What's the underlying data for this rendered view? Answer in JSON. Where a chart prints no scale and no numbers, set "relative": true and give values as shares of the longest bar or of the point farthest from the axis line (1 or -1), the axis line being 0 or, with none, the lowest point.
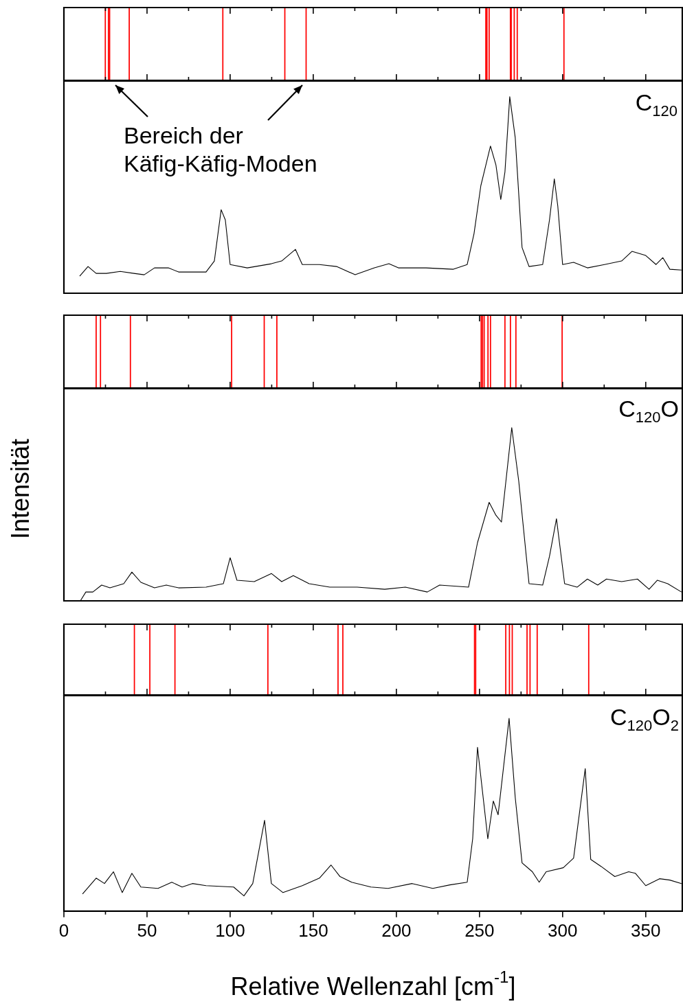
{
  "chart_data": [
    {
      "type": "bar",
      "x": [
        24.9,
        26.8,
        27.5,
        39.3,
        95.6,
        132.9,
        145.7,
        253.8,
        254.5,
        255.8,
        268.6,
        269.1,
        270.9,
        272.7,
        300.8
      ],
      "values": [
        1,
        1,
        1,
        1,
        1,
        1,
        1,
        1,
        1,
        1,
        1,
        1,
        1,
        1,
        1
      ],
      "color": "#ff0000",
      "relative": true,
      "xlim": [
        0,
        372
      ],
      "xticks": [
        0,
        {
          "value": 25,
          "label": null
        },
        50,
        {
          "value": 75,
          "label": null
        },
        100,
        {
          "value": 125,
          "label": null
        },
        150,
        {
          "value": 175,
          "label": null
        },
        200,
        {
          "value": 225,
          "label": null
        },
        250,
        {
          "value": 275,
          "label": null
        },
        300,
        {
          "value": 325,
          "label": null
        },
        350
      ],
      "tick_labels": false
    },
    {
      "type": "line",
      "x": [
        9.5,
        14.5,
        19.4,
        25.6,
        33.9,
        42.1,
        48.3,
        54.5,
        62.8,
        69,
        85.5,
        90.5,
        94.6,
        97.1,
        100,
        110.3,
        124.8,
        131,
        139.3,
        143.4,
        153.7,
        164,
        175.2,
        186.8,
        195.5,
        201.2,
        217.8,
        234.3,
        242.6,
        246.7,
        250.8,
        256.6,
        259.9,
        262.8,
        265.3,
        268.2,
        271.5,
        275.6,
        279.8,
        288,
        292.1,
        295,
        297.1,
        300,
        306.6,
        314.9,
        325.2,
        335.5,
        341.7,
        350,
        356.2,
        360.3,
        364.5,
        371.5
      ],
      "values": [
        0.087,
        0.136,
        0.101,
        0.101,
        0.111,
        0.101,
        0.094,
        0.129,
        0.129,
        0.108,
        0.108,
        0.164,
        0.425,
        0.373,
        0.146,
        0.129,
        0.15,
        0.164,
        0.223,
        0.146,
        0.146,
        0.136,
        0.094,
        0.129,
        0.15,
        0.129,
        0.129,
        0.122,
        0.146,
        0.303,
        0.547,
        0.749,
        0.652,
        0.477,
        0.617,
        1,
        0.791,
        0.233,
        0.136,
        0.146,
        0.373,
        0.582,
        0.443,
        0.146,
        0.157,
        0.129,
        0.146,
        0.164,
        0.213,
        0.192,
        0.146,
        0.181,
        0.122,
        0.118
      ],
      "color": "#000000",
      "relative": true,
      "xlim": [
        0,
        372
      ],
      "xticks": [
        0,
        {
          "value": 25,
          "label": null
        },
        50,
        {
          "value": 75,
          "label": null
        },
        100,
        {
          "value": 125,
          "label": null
        },
        150,
        {
          "value": 175,
          "label": null
        },
        200,
        {
          "value": 225,
          "label": null
        },
        250,
        {
          "value": 275,
          "label": null
        },
        300,
        {
          "value": 325,
          "label": null
        },
        350
      ],
      "tick_labels": false,
      "annotations": [
        "C$_{120}$",
        "Bereich der Käfig-Käfig-Moden"
      ]
    },
    {
      "type": "bar",
      "x": [
        19.4,
        22,
        40,
        100.9,
        120.5,
        128.1,
        251,
        251.8,
        252.8,
        255.1,
        256.6,
        265.3,
        268.6,
        271.9,
        299.7
      ],
      "values": [
        1,
        1,
        1,
        1,
        1,
        1,
        1,
        1,
        1,
        1,
        1,
        1,
        1,
        1,
        1
      ],
      "color": "#ff0000",
      "relative": true,
      "xlim": [
        0,
        372
      ],
      "xticks": [
        0,
        {
          "value": 25,
          "label": null
        },
        50,
        {
          "value": 75,
          "label": null
        },
        100,
        {
          "value": 125,
          "label": null
        },
        150,
        {
          "value": 175,
          "label": null
        },
        200,
        {
          "value": 225,
          "label": null
        },
        250,
        {
          "value": 275,
          "label": null
        },
        300,
        {
          "value": 325,
          "label": null
        },
        350
      ],
      "tick_labels": false
    },
    {
      "type": "line",
      "x": [
        9.9,
        13.2,
        17.4,
        22.7,
        27.7,
        36,
        40.9,
        46.3,
        54.5,
        61.6,
        69,
        85.5,
        95.9,
        100,
        104.1,
        114.5,
        124.8,
        131,
        138,
        147.5,
        159.9,
        176.4,
        193,
        205.4,
        218.6,
        226,
        243.4,
        248.8,
        255.8,
        259.9,
        263.2,
        269.4,
        273.6,
        279.8,
        288,
        292.1,
        296.3,
        301.2,
        308.7,
        314.9,
        321.1,
        326.4,
        335.5,
        345,
        352,
        357,
        363.2,
        371.5
      ],
      "values": [
        0,
        0.051,
        0.051,
        0.091,
        0.075,
        0.099,
        0.166,
        0.107,
        0.075,
        0.091,
        0.075,
        0.079,
        0.099,
        0.249,
        0.119,
        0.111,
        0.158,
        0.111,
        0.146,
        0.099,
        0.079,
        0.079,
        0.067,
        0.079,
        0.051,
        0.091,
        0.079,
        0.336,
        0.569,
        0.494,
        0.455,
        1,
        0.692,
        0.099,
        0.091,
        0.257,
        0.474,
        0.099,
        0.079,
        0.126,
        0.091,
        0.126,
        0.111,
        0.126,
        0.067,
        0.119,
        0.099,
        0.051
      ],
      "color": "#000000",
      "relative": true,
      "xlim": [
        0,
        372
      ],
      "xticks": [
        0,
        {
          "value": 25,
          "label": null
        },
        50,
        {
          "value": 75,
          "label": null
        },
        100,
        {
          "value": 125,
          "label": null
        },
        150,
        {
          "value": 175,
          "label": null
        },
        200,
        {
          "value": 225,
          "label": null
        },
        250,
        {
          "value": 275,
          "label": null
        },
        300,
        {
          "value": 325,
          "label": null
        },
        350
      ],
      "tick_labels": false,
      "ylabel": "Intensität",
      "annotations": [
        "C$_{120}$O"
      ]
    },
    {
      "type": "bar",
      "x": [
        42.4,
        51.7,
        66.8,
        122.7,
        164.9,
        167.8,
        247.0,
        247.7,
        265.8,
        268,
        269.7,
        278.6,
        280.4,
        284.7,
        315.7
      ],
      "values": [
        1,
        1,
        1,
        1,
        1,
        1,
        1,
        1,
        1,
        1,
        1,
        1,
        1,
        1,
        1
      ],
      "color": "#ff0000",
      "relative": true,
      "xlim": [
        0,
        372
      ],
      "xticks": [
        0,
        {
          "value": 25,
          "label": null
        },
        50,
        {
          "value": 75,
          "label": null
        },
        100,
        {
          "value": 125,
          "label": null
        },
        150,
        {
          "value": 175,
          "label": null
        },
        200,
        {
          "value": 225,
          "label": null
        },
        250,
        {
          "value": 275,
          "label": null
        },
        300,
        {
          "value": 325,
          "label": null
        },
        350
      ],
      "tick_labels": false
    },
    {
      "type": "line",
      "x": [
        11.2,
        19.4,
        24.4,
        29.8,
        35.1,
        40.9,
        46.3,
        56.6,
        64.9,
        71.1,
        77.3,
        85.5,
        102.1,
        108.3,
        113.6,
        120.7,
        124.8,
        131.8,
        143.4,
        153.7,
        160.7,
        166.1,
        173.1,
        184.7,
        195,
        209.5,
        221.9,
        232.2,
        242.6,
        245.9,
        248.8,
        255,
        258.3,
        261.2,
        267.8,
        271.5,
        275.6,
        281.8,
        285.9,
        290.1,
        300.4,
        306.6,
        313.6,
        316.9,
        323.1,
        331.4,
        339.7,
        343.8,
        350,
        358.3,
        364.5,
        371.5
      ],
      "values": [
        0.089,
        0.171,
        0.143,
        0.204,
        0.096,
        0.196,
        0.125,
        0.118,
        0.15,
        0.125,
        0.143,
        0.132,
        0.125,
        0.079,
        0.143,
        0.471,
        0.143,
        0.096,
        0.132,
        0.171,
        0.239,
        0.179,
        0.15,
        0.125,
        0.118,
        0.143,
        0.118,
        0.136,
        0.15,
        0.375,
        0.85,
        0.375,
        0.571,
        0.5,
        1,
        0.589,
        0.25,
        0.204,
        0.15,
        0.204,
        0.225,
        0.275,
        0.739,
        0.268,
        0.232,
        0.179,
        0.204,
        0.196,
        0.132,
        0.168,
        0.161,
        0.143
      ],
      "color": "#000000",
      "relative": true,
      "xlim": [
        0,
        372
      ],
      "xticks": [
        0,
        {
          "value": 25,
          "label": null
        },
        50,
        {
          "value": 75,
          "label": null
        },
        100,
        {
          "value": 125,
          "label": null
        },
        150,
        {
          "value": 175,
          "label": null
        },
        200,
        {
          "value": 225,
          "label": null
        },
        250,
        {
          "value": 275,
          "label": null
        },
        300,
        {
          "value": 325,
          "label": null
        },
        350
      ],
      "tick_labels": "x",
      "xlabel": "Relative Wellenzahl [cm$^{-1}$]",
      "annotations": [
        "C$_{120}$O$_{2}$"
      ]
    }
  ]
}
